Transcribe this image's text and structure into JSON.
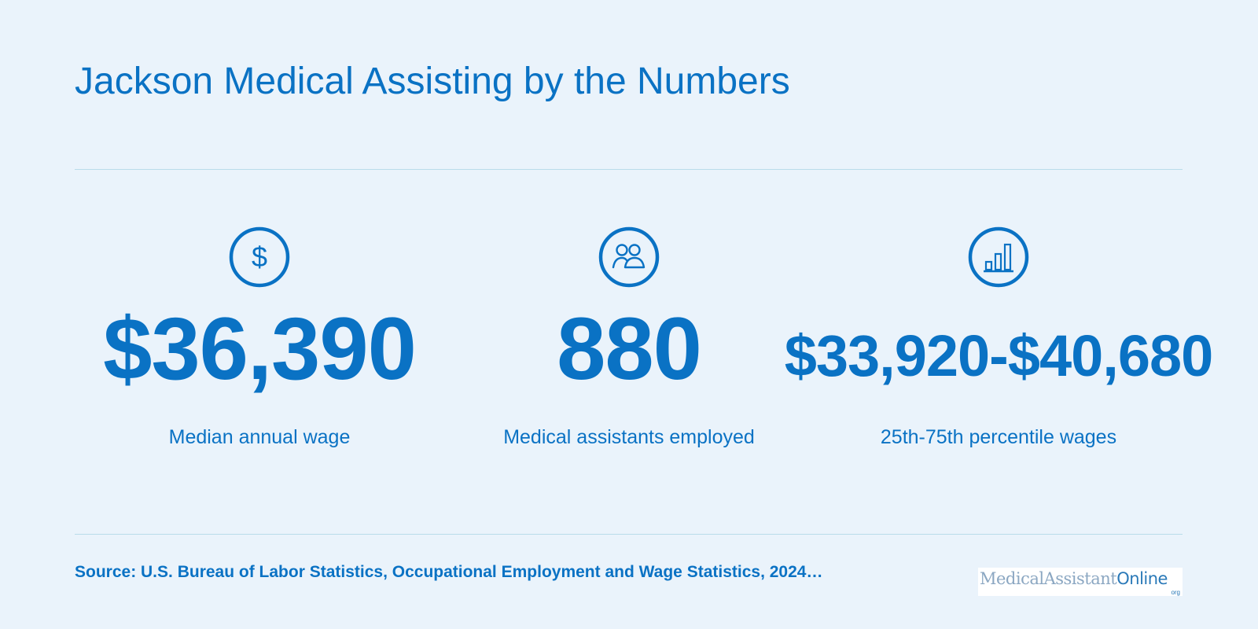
{
  "header": {
    "title": "Jackson Medical Assisting by the Numbers"
  },
  "stats": [
    {
      "icon": "dollar-icon",
      "value": "$36,390",
      "label": "Median annual wage"
    },
    {
      "icon": "people-icon",
      "value": "880",
      "label": "Medical assistants employed"
    },
    {
      "icon": "bar-chart-icon",
      "value": "$33,920-$40,680",
      "label": "25th-75th percentile wages"
    }
  ],
  "footer": {
    "source": "Source: U.S. Bureau of Labor Statistics, Occupational Employment and Wage Statistics, 2024…",
    "logo": {
      "name_part1": "MedicalAssistant",
      "name_part2": "Online",
      "suffix": "org"
    }
  },
  "colors": {
    "background": "#eaf3fb",
    "accent": "#0a72c4",
    "divider": "#b9dcea"
  }
}
